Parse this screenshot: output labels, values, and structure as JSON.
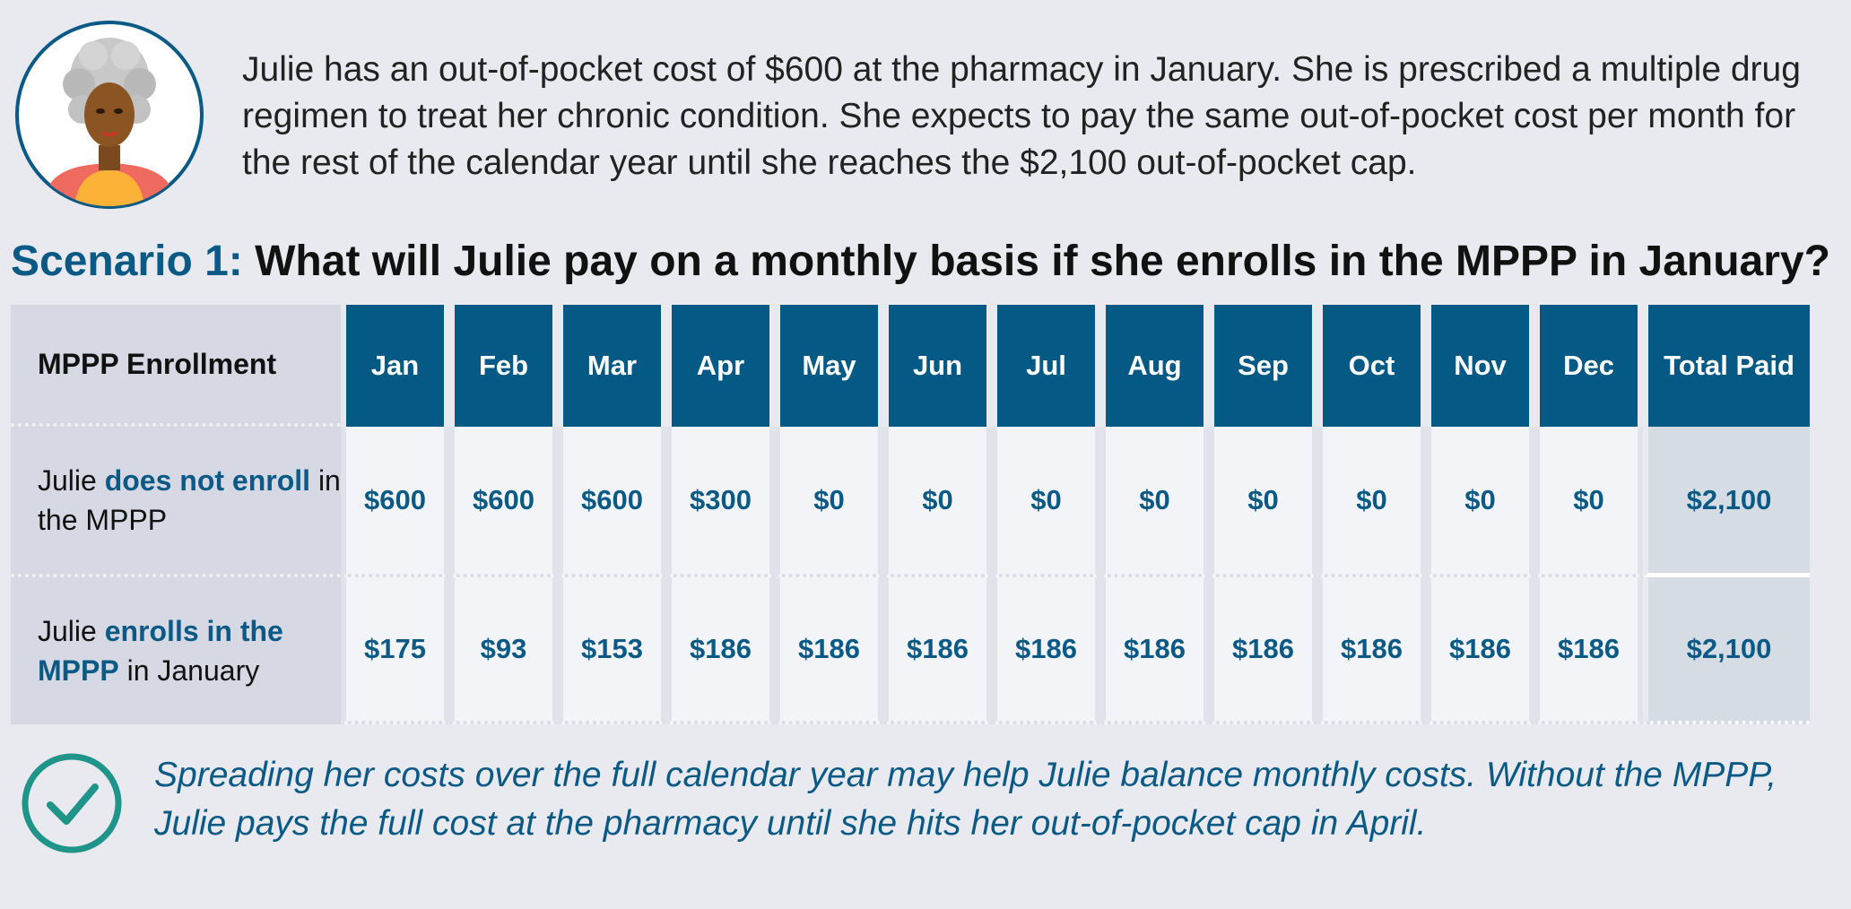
{
  "intro": {
    "text": "Julie has an out-of-pocket cost of $600 at the pharmacy in January. She is prescribed a multiple drug regimen to treat her chronic condition. She expects to pay the same out-of-pocket cost per month for the rest of the calendar year until she reaches the $2,100 out-of-pocket cap."
  },
  "scenario": {
    "lead": "Scenario 1:",
    "question": " What will Julie pay on a monthly basis if she enrolls in the MPPP in January?"
  },
  "table": {
    "header_label": "MPPP Enrollment",
    "months": [
      "Jan",
      "Feb",
      "Mar",
      "Apr",
      "May",
      "Jun",
      "Jul",
      "Aug",
      "Sep",
      "Oct",
      "Nov",
      "Dec"
    ],
    "total_header": "Total Paid",
    "rows": [
      {
        "label_prefix": "Julie ",
        "label_highlight": "does not enroll",
        "label_suffix": " in the MPPP",
        "values": [
          "$600",
          "$600",
          "$600",
          "$300",
          "$0",
          "$0",
          "$0",
          "$0",
          "$0",
          "$0",
          "$0",
          "$0"
        ],
        "total": "$2,100"
      },
      {
        "label_prefix": "Julie ",
        "label_highlight": "enrolls in the MPPP",
        "label_suffix": " in January",
        "values": [
          "$175",
          "$93",
          "$153",
          "$186",
          "$186",
          "$186",
          "$186",
          "$186",
          "$186",
          "$186",
          "$186",
          "$186"
        ],
        "total": "$2,100"
      }
    ]
  },
  "note": {
    "text": "Spreading her costs over the full calendar year may help Julie balance monthly costs. Without the MPPP, Julie pays the full cost at the pharmacy until she hits her out-of-pocket cap in April."
  },
  "colors": {
    "accent": "#0b5a86",
    "header_bg": "#055a85",
    "check": "#1f9488",
    "background": "#e9eaef"
  },
  "icons": {
    "avatar": "woman-avatar-icon",
    "check": "check-circle-icon"
  }
}
